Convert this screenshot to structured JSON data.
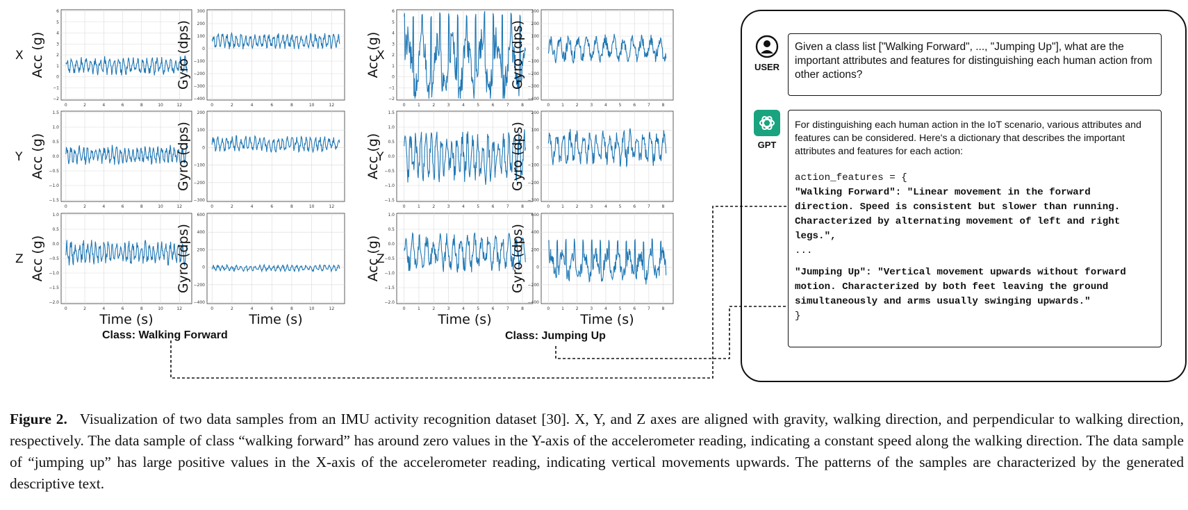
{
  "panels": [
    {
      "class_label": "Class: Walking Forward",
      "x_axis_label": "Time (s)",
      "x_ticks": [
        "0",
        "2",
        "4",
        "6",
        "8",
        "10",
        "12"
      ],
      "rows": [
        {
          "axis": "X",
          "acc": {
            "ylabel": "Acc (g)",
            "yticks": [
              "6",
              "5",
              "4",
              "3",
              "2",
              "1",
              "0",
              "−1",
              "−2"
            ],
            "ylim": [
              -2,
              6
            ],
            "xmax": 12.8,
            "center": 1.0,
            "amp": 0.9,
            "seed": 11,
            "freq": 28
          },
          "gyro": {
            "ylabel": "Gyro (dps)",
            "yticks": [
              "300",
              "200",
              "100",
              "0",
              "−100",
              "−200",
              "−300",
              "−400"
            ],
            "ylim": [
              -400,
              300
            ],
            "xmax": 12.8,
            "center": 60,
            "amp": 70,
            "seed": 12,
            "freq": 30
          }
        },
        {
          "axis": "Y",
          "acc": {
            "ylabel": "Acc (g)",
            "yticks": [
              "1.5",
              "1.0",
              "0.5",
              "0.0",
              "−0.5",
              "−1.0",
              "−1.5"
            ],
            "ylim": [
              -1.5,
              1.5
            ],
            "xmax": 12.8,
            "center": 0.05,
            "amp": 0.35,
            "seed": 13,
            "freq": 32
          },
          "gyro": {
            "ylabel": "Gyro (dps)",
            "yticks": [
              "200",
              "100",
              "0",
              "−100",
              "−200",
              "−300"
            ],
            "ylim": [
              -300,
              200
            ],
            "xmax": 12.8,
            "center": 20,
            "amp": 50,
            "seed": 14,
            "freq": 30
          }
        },
        {
          "axis": "Z",
          "acc": {
            "ylabel": "Acc (g)",
            "yticks": [
              "1.0",
              "0.5",
              "0.0",
              "−0.5",
              "−1.0",
              "−1.5",
              "−2.0"
            ],
            "ylim": [
              -2.0,
              1.0
            ],
            "xmax": 12.8,
            "center": -0.3,
            "amp": 0.45,
            "seed": 15,
            "freq": 32
          },
          "gyro": {
            "ylabel": "Gyro (dps)",
            "yticks": [
              "600",
              "400",
              "200",
              "0",
              "−200",
              "−400"
            ],
            "ylim": [
              -400,
              600
            ],
            "xmax": 12.8,
            "center": -10,
            "amp": 40,
            "seed": 16,
            "freq": 30
          }
        }
      ]
    },
    {
      "class_label": "Class: Jumping Up",
      "x_axis_label": "Time (s)",
      "x_ticks": [
        "0",
        "1",
        "2",
        "3",
        "4",
        "5",
        "6",
        "7",
        "8"
      ],
      "rows": [
        {
          "axis": "X",
          "acc": {
            "ylabel": "Acc (g)",
            "yticks": [
              "6",
              "5",
              "4",
              "3",
              "2",
              "1",
              "0",
              "−1",
              "−2"
            ],
            "ylim": [
              -2,
              6
            ],
            "xmax": 8.2,
            "center": 1.0,
            "amp": 3.6,
            "seed": 21,
            "freq": 14,
            "spiky": true
          },
          "gyro": {
            "ylabel": "Gyro (dps)",
            "yticks": [
              "300",
              "200",
              "100",
              "0",
              "−100",
              "−200",
              "−300",
              "−400"
            ],
            "ylim": [
              -400,
              300
            ],
            "xmax": 8.2,
            "center": 0,
            "amp": 120,
            "seed": 22,
            "freq": 22
          }
        },
        {
          "axis": "Y",
          "acc": {
            "ylabel": "Acc (g)",
            "yticks": [
              "1.5",
              "1.0",
              "0.5",
              "0.0",
              "−0.5",
              "−1.0",
              "−1.5"
            ],
            "ylim": [
              -1.5,
              1.5
            ],
            "xmax": 8.2,
            "center": 0.0,
            "amp": 1.0,
            "seed": 23,
            "freq": 40
          },
          "gyro": {
            "ylabel": "Gyro (dps)",
            "yticks": [
              "200",
              "100",
              "0",
              "−100",
              "−200",
              "−300"
            ],
            "ylim": [
              -300,
              200
            ],
            "xmax": 8.2,
            "center": 0,
            "amp": 110,
            "seed": 24,
            "freq": 30
          }
        },
        {
          "axis": "Z",
          "acc": {
            "ylabel": "Acc (g)",
            "yticks": [
              "1.0",
              "0.5",
              "0.0",
              "−0.5",
              "−1.0",
              "−1.5",
              "−2.0"
            ],
            "ylim": [
              -2.0,
              1.0
            ],
            "xmax": 8.2,
            "center": -0.3,
            "amp": 0.7,
            "seed": 25,
            "freq": 30
          },
          "gyro": {
            "ylabel": "Gyro (dps)",
            "yticks": [
              "600",
              "400",
              "200",
              "0",
              "−200",
              "−400"
            ],
            "ylim": [
              -400,
              600
            ],
            "xmax": 8.2,
            "center": 20,
            "amp": 220,
            "seed": 26,
            "freq": 18,
            "spiky": true
          }
        }
      ]
    }
  ],
  "colors": {
    "series": "#1f77b4",
    "grid": "#d9d9d9"
  },
  "chat": {
    "user_label": "USER",
    "gpt_label": "GPT",
    "user_icon": "user-circle-icon",
    "gpt_icon": "openai-logo-icon",
    "user_message": "Given a class list [\"Walking Forward\", ..., \"Jumping Up\"], what are the important attributes and features for distinguishing each human action from other actions?",
    "gpt_intro": "For distinguishing each human action in the IoT scenario, various attributes and features can be considered. Here's a dictionary that describes the important attributes and features for each action:",
    "code_open": "action_features = {",
    "walking_key": "\"Walking Forward\"",
    "walking_value": ": \"Linear movement in the forward direction. Speed is consistent but slower than running. Characterized by alternating movement of left and right legs.\",",
    "ellipsis": "...",
    "jumping_key": "\"Jumping Up\"",
    "jumping_value": ": \"Vertical movement upwards without forward motion. Characterized by both feet leaving the ground simultaneously and arms usually swinging upwards.\"",
    "code_close": "}"
  },
  "caption": {
    "label": "Figure 2.",
    "text": "Visualization of two data samples from an IMU activity recognition dataset [30]. X, Y, and Z axes are aligned with gravity, walking direction, and perpendicular to walking direction, respectively. The data sample of class “walking forward” has around zero values in the Y-axis of the accelerometer reading, indicating a constant speed along the walking direction. The data sample of “jumping up” has large positive values in the X-axis of the accelerometer reading, indicating vertical movements upwards. The patterns of the samples are characterized by the generated descriptive text."
  }
}
